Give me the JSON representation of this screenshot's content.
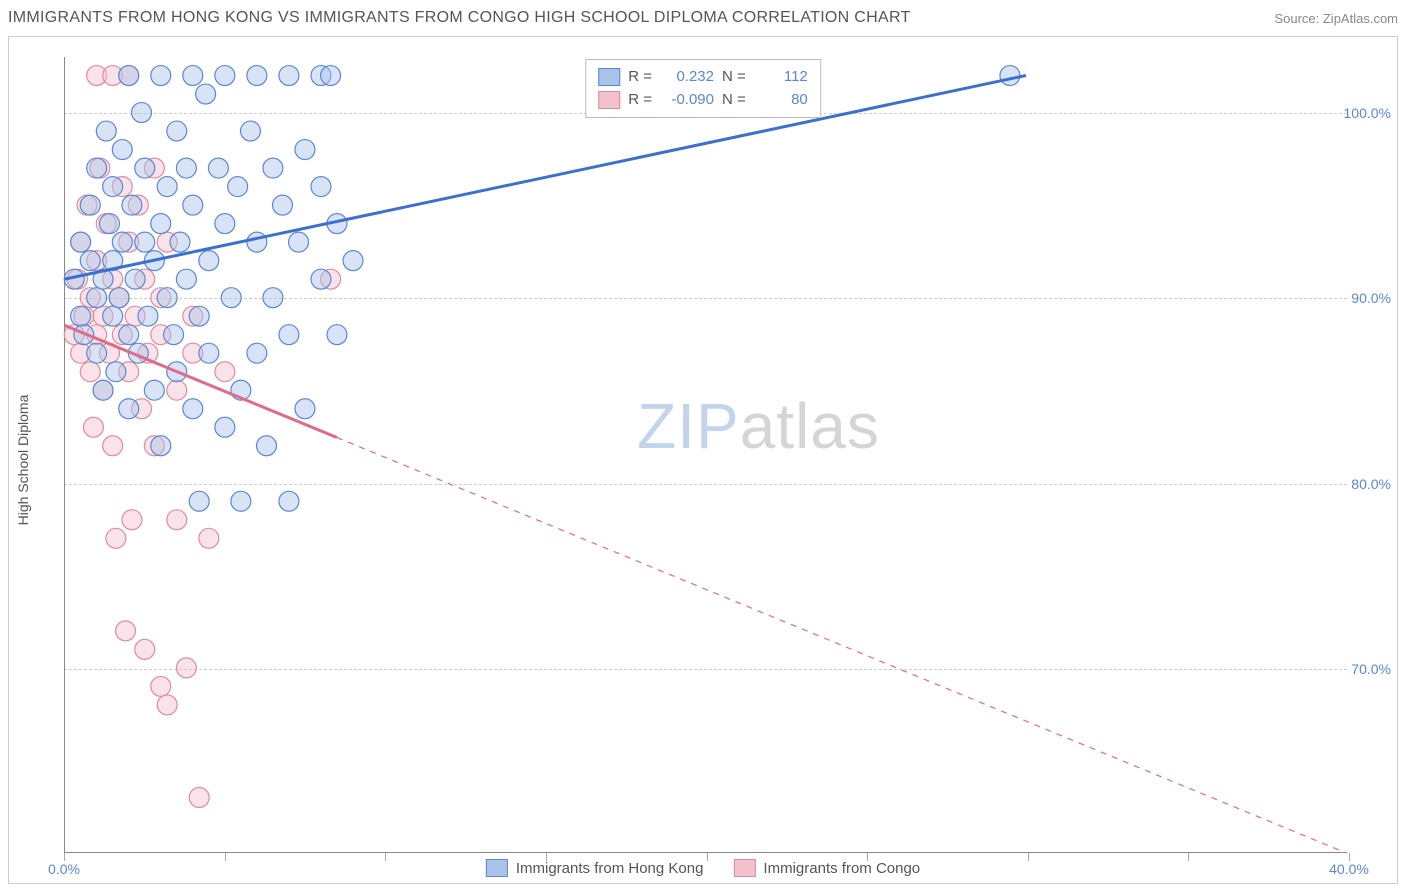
{
  "title": "IMMIGRANTS FROM HONG KONG VS IMMIGRANTS FROM CONGO HIGH SCHOOL DIPLOMA CORRELATION CHART",
  "source": "Source: ZipAtlas.com",
  "watermark_zip": "ZIP",
  "watermark_atlas": "atlas",
  "ylabel": "High School Diploma",
  "chart": {
    "type": "scatter",
    "xlim": [
      0,
      40
    ],
    "ylim": [
      60,
      103
    ],
    "xticks": [
      0,
      5,
      10,
      15,
      20,
      25,
      30,
      35,
      40
    ],
    "xtick_labels": [
      "0.0%",
      "",
      "",
      "",
      "",
      "",
      "",
      "",
      "40.0%"
    ],
    "yticks": [
      70,
      80,
      90,
      100
    ],
    "ytick_labels": [
      "70.0%",
      "80.0%",
      "90.0%",
      "100.0%"
    ],
    "grid_color": "#cccccc",
    "background_color": "#ffffff",
    "marker_radius": 10,
    "marker_opacity": 0.45,
    "line_width": 3
  },
  "series": [
    {
      "name": "Immigrants from Hong Kong",
      "color_fill": "#a9c3ea",
      "color_stroke": "#5b86d4",
      "line_color": "#3b6fd0",
      "R": "0.232",
      "N": "112",
      "trend": {
        "x1": 0,
        "y1": 91,
        "x2": 30,
        "y2": 102
      },
      "trend_dash_from_x": 30,
      "points": [
        [
          0.3,
          91
        ],
        [
          0.5,
          89
        ],
        [
          0.5,
          93
        ],
        [
          0.6,
          88
        ],
        [
          0.8,
          92
        ],
        [
          0.8,
          95
        ],
        [
          1.0,
          90
        ],
        [
          1.0,
          87
        ],
        [
          1.0,
          97
        ],
        [
          1.2,
          91
        ],
        [
          1.2,
          85
        ],
        [
          1.3,
          99
        ],
        [
          1.4,
          94
        ],
        [
          1.5,
          89
        ],
        [
          1.5,
          92
        ],
        [
          1.5,
          96
        ],
        [
          1.6,
          86
        ],
        [
          1.7,
          90
        ],
        [
          1.8,
          98
        ],
        [
          1.8,
          93
        ],
        [
          2.0,
          88
        ],
        [
          2.0,
          84
        ],
        [
          2.0,
          102
        ],
        [
          2.1,
          95
        ],
        [
          2.2,
          91
        ],
        [
          2.3,
          87
        ],
        [
          2.4,
          100
        ],
        [
          2.5,
          93
        ],
        [
          2.5,
          97
        ],
        [
          2.6,
          89
        ],
        [
          2.8,
          85
        ],
        [
          2.8,
          92
        ],
        [
          3.0,
          94
        ],
        [
          3.0,
          102
        ],
        [
          3.0,
          82
        ],
        [
          3.2,
          90
        ],
        [
          3.2,
          96
        ],
        [
          3.4,
          88
        ],
        [
          3.5,
          99
        ],
        [
          3.5,
          86
        ],
        [
          3.6,
          93
        ],
        [
          3.8,
          91
        ],
        [
          3.8,
          97
        ],
        [
          4.0,
          84
        ],
        [
          4.0,
          102
        ],
        [
          4.0,
          95
        ],
        [
          4.2,
          79
        ],
        [
          4.2,
          89
        ],
        [
          4.4,
          101
        ],
        [
          4.5,
          92
        ],
        [
          4.5,
          87
        ],
        [
          4.8,
          97
        ],
        [
          5.0,
          94
        ],
        [
          5.0,
          83
        ],
        [
          5.0,
          102
        ],
        [
          5.2,
          90
        ],
        [
          5.4,
          96
        ],
        [
          5.5,
          79
        ],
        [
          5.5,
          85
        ],
        [
          5.8,
          99
        ],
        [
          6.0,
          93
        ],
        [
          6.0,
          87
        ],
        [
          6.0,
          102
        ],
        [
          6.3,
          82
        ],
        [
          6.5,
          97
        ],
        [
          6.5,
          90
        ],
        [
          6.8,
          95
        ],
        [
          7.0,
          102
        ],
        [
          7.0,
          88
        ],
        [
          7.0,
          79
        ],
        [
          7.3,
          93
        ],
        [
          7.5,
          98
        ],
        [
          7.5,
          84
        ],
        [
          8.0,
          102
        ],
        [
          8.0,
          91
        ],
        [
          8.0,
          96
        ],
        [
          8.3,
          102
        ],
        [
          8.5,
          88
        ],
        [
          8.5,
          94
        ],
        [
          9.0,
          92
        ],
        [
          29.5,
          102
        ]
      ]
    },
    {
      "name": "Immigrants from Congo",
      "color_fill": "#f2c1cb",
      "color_stroke": "#e08aa0",
      "line_color": "#e06a88",
      "R": "-0.090",
      "N": "80",
      "trend": {
        "x1": 0,
        "y1": 88.5,
        "x2": 40,
        "y2": 60
      },
      "trend_dash_from_x": 8.5,
      "points": [
        [
          0.3,
          88
        ],
        [
          0.4,
          91
        ],
        [
          0.5,
          87
        ],
        [
          0.5,
          93
        ],
        [
          0.6,
          89
        ],
        [
          0.7,
          95
        ],
        [
          0.8,
          86
        ],
        [
          0.8,
          90
        ],
        [
          0.9,
          83
        ],
        [
          1.0,
          102
        ],
        [
          1.0,
          88
        ],
        [
          1.0,
          92
        ],
        [
          1.1,
          97
        ],
        [
          1.2,
          85
        ],
        [
          1.2,
          89
        ],
        [
          1.3,
          94
        ],
        [
          1.4,
          87
        ],
        [
          1.5,
          102
        ],
        [
          1.5,
          91
        ],
        [
          1.5,
          82
        ],
        [
          1.6,
          77
        ],
        [
          1.7,
          90
        ],
        [
          1.8,
          96
        ],
        [
          1.8,
          88
        ],
        [
          1.9,
          72
        ],
        [
          2.0,
          93
        ],
        [
          2.0,
          86
        ],
        [
          2.0,
          102
        ],
        [
          2.1,
          78
        ],
        [
          2.2,
          89
        ],
        [
          2.3,
          95
        ],
        [
          2.4,
          84
        ],
        [
          2.5,
          91
        ],
        [
          2.5,
          71
        ],
        [
          2.6,
          87
        ],
        [
          2.8,
          97
        ],
        [
          2.8,
          82
        ],
        [
          3.0,
          69
        ],
        [
          3.0,
          90
        ],
        [
          3.0,
          88
        ],
        [
          3.2,
          68
        ],
        [
          3.2,
          93
        ],
        [
          3.5,
          85
        ],
        [
          3.5,
          78
        ],
        [
          3.8,
          70
        ],
        [
          4.0,
          89
        ],
        [
          4.0,
          87
        ],
        [
          4.2,
          63
        ],
        [
          4.5,
          77
        ],
        [
          5.0,
          86
        ],
        [
          8.3,
          91
        ]
      ]
    }
  ],
  "legend_top": {
    "r_label": "R =",
    "n_label": "N ="
  }
}
